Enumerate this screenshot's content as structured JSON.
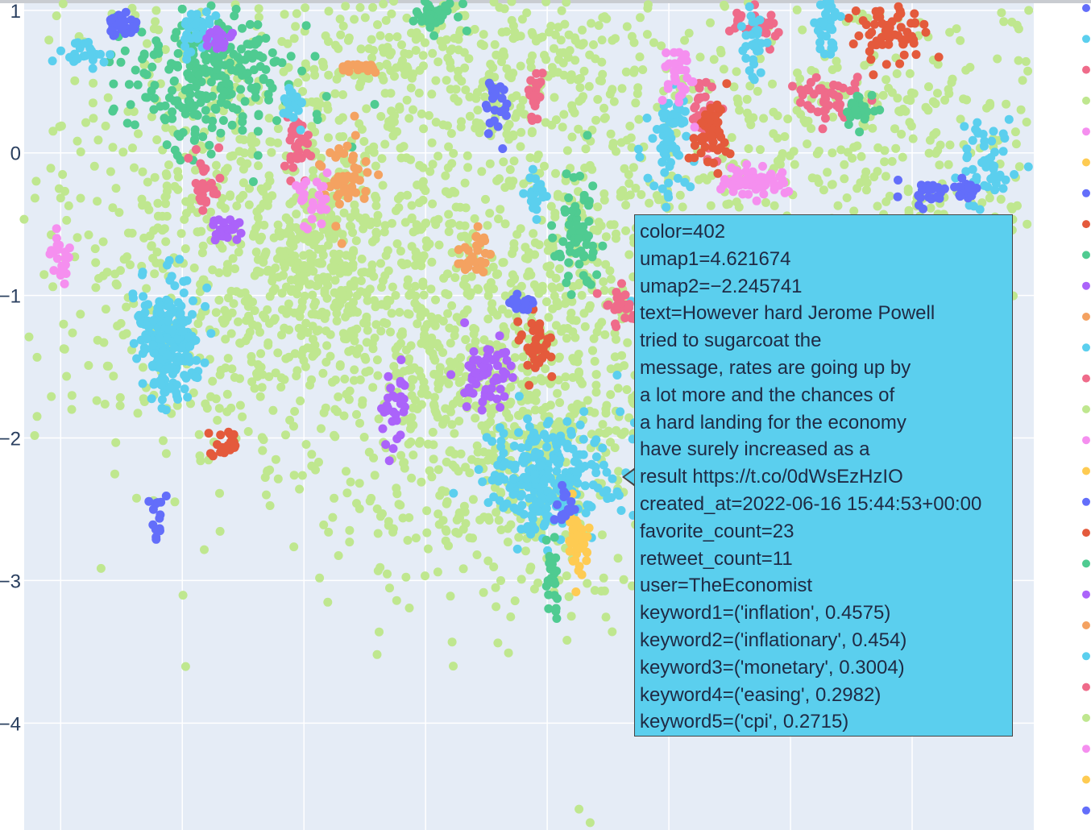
{
  "chart_data": {
    "type": "scatter",
    "title": "",
    "xlabel": "",
    "ylabel": "",
    "y_ticks": [
      "1",
      "0",
      "−1",
      "−2",
      "−3",
      "−4"
    ],
    "y_tick_values": [
      1,
      0,
      -1,
      -2,
      -3,
      -4
    ],
    "ylim": [
      -4.75,
      1.05
    ],
    "xlim": [
      -3.7,
      4.6
    ],
    "x_grid_values": [
      -3.4,
      -2.4,
      -1.4,
      -0.4,
      0.6,
      1.6,
      2.6,
      3.6
    ],
    "grid": true,
    "legend_placement": "right",
    "legend_colors": [
      "#636efa",
      "#5bcfee",
      "#ef6b8a",
      "#bfe78f",
      "#f58fef",
      "#fecb52",
      "#636efa",
      "#e45a3c",
      "#4fcb91",
      "#ab63fa",
      "#f4a261",
      "#5bcfee",
      "#ef6b8a",
      "#bfe78f",
      "#f58fef",
      "#fecb52",
      "#636efa",
      "#e45a3c",
      "#4fcb91",
      "#ab63fa",
      "#f4a261",
      "#5bcfee",
      "#ef6b8a",
      "#bfe78f",
      "#f58fef",
      "#fecb52",
      "#636efa"
    ],
    "palette": {
      "light_green": "#bfe78f",
      "cyan": "#5bcfee",
      "green": "#4fcb91",
      "pink": "#ef6b8a",
      "violet": "#f58fef",
      "blue": "#636efa",
      "purple": "#ab63fa",
      "red": "#e45a3c",
      "orange": "#f4a261",
      "yellow": "#fecb52"
    },
    "clusters": [
      {
        "color": "green",
        "x": -2.2,
        "y": 0.5,
        "sx": 0.35,
        "sy": 0.25,
        "n": 260
      },
      {
        "color": "cyan",
        "x": -2.5,
        "y": -1.3,
        "sx": 0.13,
        "sy": 0.22,
        "n": 220
      },
      {
        "color": "cyan",
        "x": 0.6,
        "y": -2.3,
        "sx": 0.25,
        "sy": 0.2,
        "n": 260
      },
      {
        "color": "cyan",
        "x": 1.8,
        "y": -1.6,
        "sx": 0.2,
        "sy": 0.4,
        "n": 260
      },
      {
        "color": "cyan",
        "x": 1.6,
        "y": 0.1,
        "sx": 0.08,
        "sy": 0.2,
        "n": 70
      },
      {
        "color": "pink",
        "x": 1.9,
        "y": 0.25,
        "sx": 0.06,
        "sy": 0.12,
        "n": 40
      },
      {
        "color": "violet",
        "x": 2.3,
        "y": -0.2,
        "sx": 0.15,
        "sy": 0.05,
        "n": 60
      },
      {
        "color": "red",
        "x": 1.95,
        "y": 0.15,
        "sx": 0.08,
        "sy": 0.12,
        "n": 50
      },
      {
        "color": "blue",
        "x": -2.9,
        "y": 0.9,
        "sx": 0.08,
        "sy": 0.05,
        "n": 30
      },
      {
        "color": "purple",
        "x": -2.05,
        "y": -0.55,
        "sx": 0.06,
        "sy": 0.04,
        "n": 25
      },
      {
        "color": "red",
        "x": -2.05,
        "y": -2.05,
        "sx": 0.06,
        "sy": 0.05,
        "n": 25
      },
      {
        "color": "blue",
        "x": -2.6,
        "y": -2.55,
        "sx": 0.03,
        "sy": 0.1,
        "n": 15
      },
      {
        "color": "purple",
        "x": 0.1,
        "y": -1.55,
        "sx": 0.1,
        "sy": 0.12,
        "n": 60
      },
      {
        "color": "red",
        "x": 0.5,
        "y": -1.35,
        "sx": 0.08,
        "sy": 0.1,
        "n": 40
      },
      {
        "color": "orange",
        "x": -1.05,
        "y": -0.1,
        "sx": 0.1,
        "sy": 0.15,
        "n": 45
      },
      {
        "color": "green",
        "x": 0.85,
        "y": -0.6,
        "sx": 0.1,
        "sy": 0.2,
        "n": 70
      },
      {
        "color": "yellow",
        "x": 0.85,
        "y": -2.7,
        "sx": 0.05,
        "sy": 0.15,
        "n": 40
      },
      {
        "color": "green",
        "x": 0.65,
        "y": -3.0,
        "sx": 0.03,
        "sy": 0.15,
        "n": 25
      },
      {
        "color": "red",
        "x": 3.4,
        "y": 0.85,
        "sx": 0.15,
        "sy": 0.1,
        "n": 60
      },
      {
        "color": "pink",
        "x": 2.9,
        "y": 0.4,
        "sx": 0.12,
        "sy": 0.08,
        "n": 45
      },
      {
        "color": "cyan",
        "x": 4.2,
        "y": -0.1,
        "sx": 0.12,
        "sy": 0.15,
        "n": 50
      },
      {
        "color": "blue",
        "x": 3.7,
        "y": -0.3,
        "sx": 0.08,
        "sy": 0.05,
        "n": 25
      },
      {
        "color": "cyan",
        "x": 2.9,
        "y": 0.9,
        "sx": 0.05,
        "sy": 0.12,
        "n": 40
      },
      {
        "color": "pink",
        "x": -1.45,
        "y": 0.05,
        "sx": 0.06,
        "sy": 0.15,
        "n": 30
      },
      {
        "color": "violet",
        "x": -1.35,
        "y": -0.35,
        "sx": 0.08,
        "sy": 0.1,
        "n": 25
      },
      {
        "color": "orange",
        "x": 0.0,
        "y": -0.7,
        "sx": 0.08,
        "sy": 0.08,
        "n": 30
      },
      {
        "color": "blue",
        "x": 0.4,
        "y": -1.05,
        "sx": 0.06,
        "sy": 0.04,
        "n": 20
      },
      {
        "color": "purple",
        "x": -0.65,
        "y": -1.8,
        "sx": 0.07,
        "sy": 0.15,
        "n": 30
      },
      {
        "color": "violet",
        "x": -3.4,
        "y": -0.75,
        "sx": 0.05,
        "sy": 0.08,
        "n": 25
      },
      {
        "color": "pink",
        "x": -2.2,
        "y": -0.15,
        "sx": 0.05,
        "sy": 0.12,
        "n": 25
      },
      {
        "color": "cyan",
        "x": -3.2,
        "y": 0.7,
        "sx": 0.12,
        "sy": 0.05,
        "n": 25
      },
      {
        "color": "green",
        "x": -0.35,
        "y": 0.95,
        "sx": 0.1,
        "sy": 0.08,
        "n": 40
      },
      {
        "color": "pink",
        "x": 2.3,
        "y": 0.9,
        "sx": 0.12,
        "sy": 0.05,
        "n": 30
      },
      {
        "color": "cyan",
        "x": 2.3,
        "y": 0.8,
        "sx": 0.04,
        "sy": 0.15,
        "n": 30
      },
      {
        "color": "violet",
        "x": 1.7,
        "y": 0.55,
        "sx": 0.08,
        "sy": 0.1,
        "n": 30
      },
      {
        "color": "blue",
        "x": 0.2,
        "y": 0.35,
        "sx": 0.05,
        "sy": 0.1,
        "n": 25
      },
      {
        "color": "pink",
        "x": 0.5,
        "y": 0.45,
        "sx": 0.04,
        "sy": 0.1,
        "n": 25
      },
      {
        "color": "orange",
        "x": -0.95,
        "y": 0.6,
        "sx": 0.1,
        "sy": 0.02,
        "n": 20
      },
      {
        "color": "pink",
        "x": 1.2,
        "y": -1.1,
        "sx": 0.07,
        "sy": 0.08,
        "n": 25
      },
      {
        "color": "cyan",
        "x": -1.5,
        "y": 0.35,
        "sx": 0.04,
        "sy": 0.08,
        "n": 18
      },
      {
        "color": "green",
        "x": 3.15,
        "y": 0.3,
        "sx": 0.08,
        "sy": 0.08,
        "n": 25
      },
      {
        "color": "blue",
        "x": 4.05,
        "y": -0.25,
        "sx": 0.06,
        "sy": 0.04,
        "n": 20
      },
      {
        "color": "cyan",
        "x": 0.5,
        "y": -0.3,
        "sx": 0.04,
        "sy": 0.1,
        "n": 20
      },
      {
        "color": "blue",
        "x": 1.5,
        "y": -2.7,
        "sx": 0.05,
        "sy": 0.05,
        "n": 15
      },
      {
        "color": "blue",
        "x": 0.75,
        "y": -2.45,
        "sx": 0.04,
        "sy": 0.08,
        "n": 15
      },
      {
        "color": "cyan",
        "x": -2.3,
        "y": 0.85,
        "sx": 0.08,
        "sy": 0.1,
        "n": 35
      },
      {
        "color": "purple",
        "x": -2.1,
        "y": 0.8,
        "sx": 0.07,
        "sy": 0.04,
        "n": 20
      },
      {
        "color": "light_green",
        "x": -0.6,
        "y": -0.9,
        "sx": 0.9,
        "sy": 0.9,
        "n": 700
      },
      {
        "color": "light_green",
        "x": -2.2,
        "y": -0.5,
        "sx": 0.7,
        "sy": 1.0,
        "n": 500
      },
      {
        "color": "light_green",
        "x": 1.2,
        "y": -0.6,
        "sx": 0.9,
        "sy": 1.0,
        "n": 500
      },
      {
        "color": "light_green",
        "x": 0.3,
        "y": -1.9,
        "sx": 0.6,
        "sy": 0.6,
        "n": 500
      },
      {
        "color": "light_green",
        "x": 3.5,
        "y": 0.0,
        "sx": 0.8,
        "sy": 0.6,
        "n": 350
      },
      {
        "color": "light_green",
        "x": -1.3,
        "y": -0.8,
        "sx": 0.3,
        "sy": 0.3,
        "n": 200
      },
      {
        "color": "light_green",
        "x": -0.1,
        "y": 0.7,
        "sx": 0.8,
        "sy": 0.3,
        "n": 250
      }
    ],
    "highlighted_point": {
      "x": 4.621674,
      "y": -2.245741
    }
  },
  "tooltip": {
    "lines": [
      "color=402",
      "umap1=4.621674",
      "umap2=−2.245741",
      "text=However hard Jerome Powell",
      "tried to sugarcoat the",
      "message, rates are going up by",
      "a lot more and the chances of",
      "a hard landing for the economy",
      "have surely increased as a",
      "result https://t.co/0dWsEzHzIO",
      "created_at=2022-06-16 15:44:53+00:00",
      "favorite_count=23",
      "retweet_count=11",
      "user=TheEconomist",
      "keyword1=('inflation', 0.4575)",
      "keyword2=('inflationary', 0.454)",
      "keyword3=('monetary', 0.3004)",
      "keyword4=('easing', 0.2982)",
      "keyword5=('cpi', 0.2715)"
    ]
  }
}
